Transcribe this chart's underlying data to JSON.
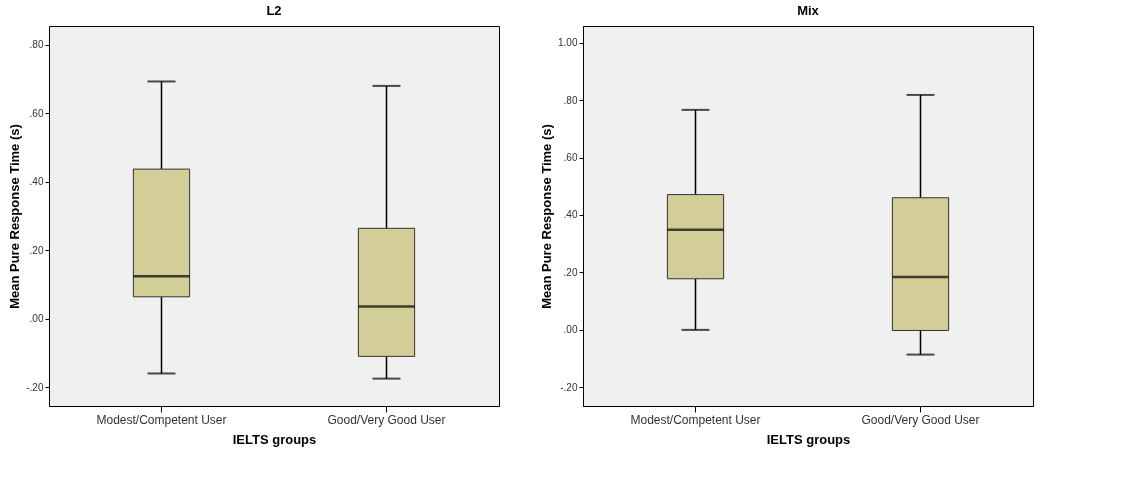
{
  "chart_data": [
    {
      "type": "box",
      "title": "L2",
      "xlabel": "IELTS groups",
      "ylabel": "Mean Pure Response Time (s)",
      "categories": [
        "Modest/Competent User",
        "Good/Very Good User"
      ],
      "color": "#d3ce97",
      "boxes": [
        {
          "low": -0.16,
          "q1": 0.064,
          "median": 0.124,
          "q3": 0.437,
          "high": 0.693
        },
        {
          "low": -0.175,
          "q1": -0.11,
          "median": 0.036,
          "q3": 0.264,
          "high": 0.68
        }
      ],
      "ylim": [
        -0.255,
        0.855
      ],
      "yticks": [
        {
          "value": -0.2,
          "label": "-.20"
        },
        {
          "value": 0,
          "label": ".00"
        },
        {
          "value": 0.2,
          "label": ".20"
        },
        {
          "value": 0.4,
          "label": ".40"
        },
        {
          "value": 0.6,
          "label": ".60"
        },
        {
          "value": 0.8,
          "label": ".80"
        }
      ],
      "grid": false
    },
    {
      "type": "box",
      "title": "Mix",
      "xlabel": "IELTS groups",
      "ylabel": "Mean Pure Response Time (s)",
      "categories": [
        "Modest/Competent User",
        "Good/Very Good User"
      ],
      "color": "#d3ce97",
      "boxes": [
        {
          "low": 0.0,
          "q1": 0.178,
          "median": 0.349,
          "q3": 0.471,
          "high": 0.766
        },
        {
          "low": -0.086,
          "q1": -0.002,
          "median": 0.184,
          "q3": 0.46,
          "high": 0.818
        }
      ],
      "ylim": [
        -0.265,
        1.058
      ],
      "yticks": [
        {
          "value": -0.2,
          "label": "-.20"
        },
        {
          "value": 0,
          "label": ".00"
        },
        {
          "value": 0.2,
          "label": ".20"
        },
        {
          "value": 0.4,
          "label": ".40"
        },
        {
          "value": 0.6,
          "label": ".60"
        },
        {
          "value": 0.8,
          "label": ".80"
        },
        {
          "value": 1.0,
          "label": "1.00"
        }
      ],
      "grid": false
    }
  ]
}
